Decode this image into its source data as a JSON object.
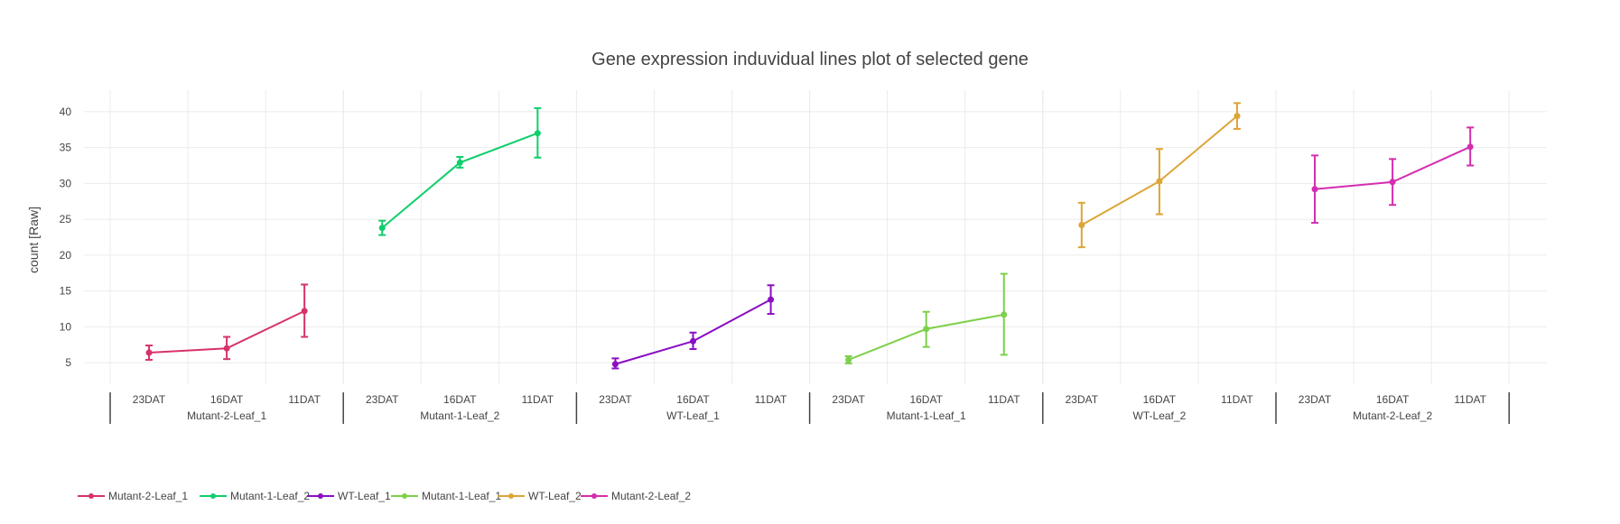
{
  "chart_data": {
    "type": "line",
    "title": "Gene expression induvidual lines plot of selected gene",
    "xlabel": "",
    "ylabel": "count [Raw]",
    "ylim": [
      2,
      43
    ],
    "yticks": [
      5,
      10,
      15,
      20,
      25,
      30,
      35,
      40
    ],
    "grid": true,
    "legend_position": "bottom-left",
    "x_levels": [
      "23DAT",
      "16DAT",
      "11DAT"
    ],
    "groups": [
      "Mutant-2-Leaf_1",
      "Mutant-1-Leaf_2",
      "WT-Leaf_1",
      "Mutant-1-Leaf_1",
      "WT-Leaf_2",
      "Mutant-2-Leaf_2"
    ],
    "series": [
      {
        "name": "Mutant-2-Leaf_1",
        "color": "#d6336c",
        "group": "Mutant-2-Leaf_1",
        "x": [
          "23DAT",
          "16DAT",
          "11DAT"
        ],
        "values": [
          6.4,
          7.0,
          12.2
        ],
        "error_low": [
          5.4,
          5.5,
          8.6
        ],
        "error_high": [
          7.4,
          8.6,
          15.9
        ]
      },
      {
        "name": "Mutant-1-Leaf_2",
        "color": "#0fce6c",
        "group": "Mutant-1-Leaf_2",
        "x": [
          "23DAT",
          "16DAT",
          "11DAT"
        ],
        "values": [
          23.8,
          32.9,
          37.0
        ],
        "error_low": [
          22.8,
          32.2,
          33.6
        ],
        "error_high": [
          24.8,
          33.7,
          40.5
        ]
      },
      {
        "name": "WT-Leaf_1",
        "color": "#8a0fc2",
        "group": "WT-Leaf_1",
        "x": [
          "23DAT",
          "16DAT",
          "11DAT"
        ],
        "values": [
          4.8,
          8.0,
          13.8
        ],
        "error_low": [
          4.2,
          6.9,
          11.8
        ],
        "error_high": [
          5.6,
          9.2,
          15.8
        ]
      },
      {
        "name": "Mutant-1-Leaf_1",
        "color": "#7dd04b",
        "group": "Mutant-1-Leaf_1",
        "x": [
          "23DAT",
          "16DAT",
          "11DAT"
        ],
        "values": [
          5.4,
          9.7,
          11.7
        ],
        "error_low": [
          4.9,
          7.2,
          6.1
        ],
        "error_high": [
          5.9,
          12.1,
          17.4
        ]
      },
      {
        "name": "WT-Leaf_2",
        "color": "#dca536",
        "group": "WT-Leaf_2",
        "x": [
          "23DAT",
          "16DAT",
          "11DAT"
        ],
        "values": [
          24.2,
          30.3,
          39.4
        ],
        "error_low": [
          21.1,
          25.7,
          37.6
        ],
        "error_high": [
          27.3,
          34.8,
          41.2
        ]
      },
      {
        "name": "Mutant-2-Leaf_2",
        "color": "#d42db0",
        "group": "Mutant-2-Leaf_2",
        "x": [
          "23DAT",
          "16DAT",
          "11DAT"
        ],
        "values": [
          29.2,
          30.2,
          35.1
        ],
        "error_low": [
          24.5,
          27.0,
          32.5
        ],
        "error_high": [
          33.9,
          33.4,
          37.8
        ]
      }
    ]
  }
}
